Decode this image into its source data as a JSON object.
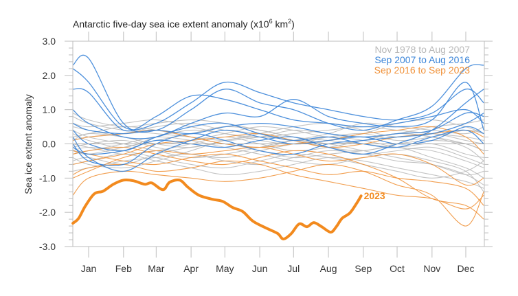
{
  "chart_data": {
    "type": "line",
    "title": "Antarctic five-day sea ice extent anomaly (x10",
    "title_sup1": "6",
    "title_mid": " km",
    "title_sup2": "2",
    "title_end": ")",
    "xlabel": "",
    "ylabel": "Sea ice extent anomaly",
    "x_unit": "day of year",
    "xlim": [
      1,
      366
    ],
    "ylim": [
      -3.0,
      3.0
    ],
    "yticks": [
      {
        "value": 3.0,
        "label": "3.0"
      },
      {
        "value": 2.0,
        "label": "2.0"
      },
      {
        "value": 1.0,
        "label": "1.0"
      },
      {
        "value": 0.0,
        "label": "0.0"
      },
      {
        "value": -1.0,
        "label": "-1.0"
      },
      {
        "value": -2.0,
        "label": "-2.0"
      },
      {
        "value": -3.0,
        "label": "-3.0"
      }
    ],
    "xticks": [
      {
        "day": 15,
        "label": "Jan"
      },
      {
        "day": 46,
        "label": "Feb"
      },
      {
        "day": 75,
        "label": "Mar"
      },
      {
        "day": 106,
        "label": "Apr"
      },
      {
        "day": 136,
        "label": "May"
      },
      {
        "day": 167,
        "label": "Jun"
      },
      {
        "day": 197,
        "label": "Jul"
      },
      {
        "day": 228,
        "label": "Aug"
      },
      {
        "day": 259,
        "label": "Sep"
      },
      {
        "day": 289,
        "label": "Oct"
      },
      {
        "day": 320,
        "label": "Nov"
      },
      {
        "day": 350,
        "label": "Dec"
      }
    ],
    "grid": false,
    "zero_line": true,
    "legend_position": "top-right",
    "legend": [
      {
        "label": "Nov 1978 to Aug 2007",
        "color": "#b9b9b9"
      },
      {
        "label": "Sep 2007 to Aug 2016",
        "color": "#3a84d8"
      },
      {
        "label": "Sep 2016 to Sep 2023",
        "color": "#f0923a"
      }
    ],
    "highlight": {
      "name": "2023",
      "label": "2023",
      "color": "#f28a1e",
      "x": [
        1,
        6,
        12,
        20,
        28,
        37,
        46,
        55,
        65,
        71,
        81,
        87,
        96,
        103,
        113,
        125,
        134,
        143,
        152,
        161,
        174,
        183,
        188,
        195,
        202,
        209,
        215,
        222,
        230,
        235,
        240,
        247,
        253,
        257
      ],
      "y": [
        -2.32,
        -2.18,
        -1.82,
        -1.46,
        -1.38,
        -1.18,
        -1.06,
        -1.08,
        -1.18,
        -1.14,
        -1.34,
        -1.12,
        -1.06,
        -1.26,
        -1.5,
        -1.62,
        -1.68,
        -1.86,
        -1.98,
        -2.26,
        -2.48,
        -2.62,
        -2.78,
        -2.62,
        -2.34,
        -2.42,
        -2.3,
        -2.42,
        -2.58,
        -2.42,
        -2.18,
        -2.02,
        -1.74,
        -1.52
      ]
    },
    "sample_x": [
      1,
      15,
      46,
      75,
      106,
      136,
      167,
      197,
      228,
      259,
      289,
      320,
      350,
      366
    ],
    "series": [
      {
        "group": "1978-2007",
        "values": [
          0.3,
          0.1,
          -0.1,
          0.2,
          0.4,
          0.3,
          0.1,
          0.0,
          0.2,
          0.3,
          0.1,
          0.2,
          0.4,
          0.3
        ]
      },
      {
        "group": "1978-2007",
        "values": [
          -0.2,
          -0.3,
          -0.1,
          0.1,
          0.3,
          0.5,
          0.4,
          0.2,
          0.1,
          0.0,
          -0.1,
          0.0,
          -0.3,
          -0.4
        ]
      },
      {
        "group": "1978-2007",
        "values": [
          0.8,
          0.6,
          0.4,
          0.3,
          0.2,
          0.1,
          0.2,
          0.4,
          0.3,
          0.2,
          0.3,
          0.5,
          0.6,
          0.7
        ]
      },
      {
        "group": "1978-2007",
        "values": [
          -0.5,
          -0.4,
          -0.6,
          -0.3,
          -0.1,
          0.0,
          -0.2,
          -0.4,
          -0.3,
          -0.2,
          -0.1,
          -0.4,
          -0.7,
          -1.0
        ]
      },
      {
        "group": "1978-2007",
        "values": [
          0.1,
          0.2,
          0.3,
          0.5,
          0.6,
          0.4,
          0.3,
          0.1,
          -0.1,
          -0.2,
          0.0,
          0.1,
          0.0,
          -0.2
        ]
      },
      {
        "group": "1978-2007",
        "values": [
          -0.8,
          -0.7,
          -0.5,
          -0.4,
          -0.3,
          -0.5,
          -0.6,
          -0.4,
          -0.2,
          -0.3,
          -0.5,
          -0.6,
          -0.9,
          -1.2
        ]
      },
      {
        "group": "1978-2007",
        "values": [
          0.5,
          0.4,
          0.2,
          0.0,
          -0.1,
          0.1,
          0.3,
          0.5,
          0.6,
          0.4,
          0.2,
          0.3,
          0.1,
          0.0
        ]
      },
      {
        "group": "1978-2007",
        "values": [
          0.0,
          -0.1,
          -0.3,
          -0.2,
          0.0,
          0.2,
          0.0,
          -0.2,
          -0.1,
          0.1,
          0.3,
          0.2,
          -0.1,
          -0.5
        ]
      },
      {
        "group": "1978-2007",
        "values": [
          -0.3,
          -0.2,
          0.0,
          0.2,
          0.1,
          -0.1,
          -0.3,
          -0.5,
          -0.6,
          -0.4,
          -0.3,
          -0.5,
          -0.8,
          -1.4
        ]
      },
      {
        "group": "1978-2007",
        "values": [
          0.6,
          0.5,
          0.6,
          0.7,
          0.5,
          0.3,
          0.2,
          0.3,
          0.4,
          0.5,
          0.4,
          0.3,
          0.2,
          0.1
        ]
      },
      {
        "group": "1978-2007",
        "values": [
          -0.1,
          0.0,
          0.1,
          -0.1,
          -0.3,
          -0.4,
          -0.2,
          0.0,
          0.2,
          0.1,
          -0.1,
          -0.2,
          -0.5,
          -0.7
        ]
      },
      {
        "group": "1978-2007",
        "values": [
          0.2,
          0.3,
          0.5,
          0.4,
          0.2,
          0.0,
          -0.1,
          0.1,
          0.3,
          0.6,
          0.5,
          0.4,
          0.3,
          0.5
        ]
      },
      {
        "group": "1978-2007",
        "values": [
          -0.6,
          -0.5,
          -0.3,
          -0.5,
          -0.7,
          -0.9,
          -0.8,
          -0.6,
          -0.4,
          -0.5,
          -0.7,
          -0.9,
          -1.1,
          -1.3
        ]
      },
      {
        "group": "1978-2007",
        "values": [
          0.9,
          0.7,
          0.5,
          0.6,
          0.7,
          0.6,
          0.4,
          0.2,
          0.0,
          0.1,
          0.3,
          0.2,
          0.0,
          -0.2
        ]
      },
      {
        "group": "1978-2007",
        "values": [
          -0.4,
          -0.6,
          -0.7,
          -0.5,
          -0.2,
          0.1,
          0.2,
          0.1,
          -0.1,
          -0.3,
          -0.2,
          -0.1,
          -0.4,
          -0.6
        ]
      },
      {
        "group": "1978-2007",
        "values": [
          0.4,
          0.2,
          0.0,
          -0.2,
          -0.4,
          -0.3,
          -0.1,
          0.1,
          0.0,
          -0.2,
          -0.4,
          -0.6,
          -0.9,
          -0.8
        ]
      },
      {
        "group": "1978-2007",
        "values": [
          0.1,
          0.3,
          0.2,
          0.0,
          0.1,
          0.3,
          0.5,
          0.4,
          0.2,
          0.3,
          0.6,
          0.7,
          0.5,
          0.3
        ]
      },
      {
        "group": "1978-2007",
        "values": [
          -0.2,
          -0.1,
          -0.2,
          -0.4,
          -0.6,
          -0.7,
          -0.5,
          -0.3,
          -0.4,
          -0.6,
          -0.8,
          -1.0,
          -0.8,
          -0.5
        ]
      },
      {
        "group": "2007-2016",
        "values": [
          2.3,
          2.5,
          0.6,
          0.4,
          1.0,
          1.6,
          1.2,
          1.0,
          0.6,
          0.4,
          0.7,
          1.1,
          2.2,
          2.3
        ]
      },
      {
        "group": "2007-2016",
        "values": [
          2.2,
          1.8,
          0.5,
          0.6,
          1.2,
          1.8,
          1.5,
          1.2,
          1.0,
          0.8,
          0.7,
          0.9,
          1.6,
          1.2
        ]
      },
      {
        "group": "2007-2016",
        "values": [
          1.6,
          1.5,
          0.4,
          0.8,
          1.4,
          1.3,
          1.0,
          0.7,
          0.6,
          0.5,
          0.6,
          0.8,
          1.0,
          0.6
        ]
      },
      {
        "group": "2007-2016",
        "values": [
          1.0,
          0.6,
          0.2,
          0.2,
          0.6,
          0.9,
          0.8,
          1.3,
          0.8,
          0.6,
          0.5,
          0.7,
          1.8,
          0.4
        ]
      },
      {
        "group": "2007-2016",
        "values": [
          0.6,
          0.4,
          0.3,
          0.4,
          0.3,
          0.5,
          0.6,
          0.5,
          0.3,
          0.2,
          0.3,
          0.4,
          0.9,
          0.8
        ]
      },
      {
        "group": "2007-2016",
        "values": [
          0.2,
          -0.4,
          -0.8,
          -0.3,
          0.1,
          0.4,
          0.2,
          0.0,
          0.1,
          0.2,
          0.0,
          0.1,
          0.5,
          0.3
        ]
      },
      {
        "group": "2007-2016",
        "values": [
          0.0,
          -0.5,
          -0.6,
          0.0,
          0.3,
          0.1,
          -0.2,
          -0.3,
          0.0,
          0.1,
          0.2,
          0.3,
          0.6,
          0.9
        ]
      },
      {
        "group": "2007-2016",
        "values": [
          0.4,
          0.0,
          -0.2,
          0.2,
          0.5,
          0.6,
          0.3,
          0.1,
          0.2,
          0.0,
          -0.1,
          0.2,
          0.4,
          0.0
        ]
      },
      {
        "group": "2007-2016",
        "values": [
          -0.1,
          -0.3,
          -0.2,
          0.1,
          0.0,
          -0.1,
          0.1,
          0.2,
          -0.1,
          -0.3,
          0.0,
          0.4,
          1.2,
          1.6
        ]
      },
      {
        "group": "2016-2023",
        "values": [
          -0.3,
          -0.2,
          -0.1,
          -0.3,
          -0.5,
          -0.6,
          -0.4,
          -0.2,
          -0.3,
          -0.6,
          -1.0,
          -1.6,
          -1.8,
          -2.2
        ]
      },
      {
        "group": "2016-2023",
        "values": [
          -1.5,
          -1.0,
          -0.8,
          -0.9,
          -1.0,
          -1.1,
          -1.0,
          -0.8,
          -0.6,
          -0.8,
          -1.2,
          -1.5,
          -2.4,
          -1.4
        ]
      },
      {
        "group": "2016-2023",
        "values": [
          -1.0,
          -0.8,
          -0.4,
          -0.2,
          -0.3,
          -0.2,
          -0.1,
          -0.3,
          -0.5,
          -0.4,
          -0.3,
          -0.6,
          -1.2,
          -1.0
        ]
      },
      {
        "group": "2016-2023",
        "values": [
          -0.6,
          -0.5,
          -0.3,
          0.0,
          0.1,
          0.2,
          0.3,
          0.1,
          -0.1,
          0.0,
          0.2,
          0.3,
          0.4,
          0.2
        ]
      },
      {
        "group": "2016-2023",
        "values": [
          -0.2,
          -0.3,
          -0.5,
          -0.6,
          -0.4,
          -0.3,
          -0.5,
          -0.7,
          -0.9,
          -0.8,
          -1.0,
          -1.1,
          -1.3,
          -1.8
        ]
      },
      {
        "group": "2016-2023",
        "values": [
          0.1,
          0.2,
          0.3,
          0.4,
          0.2,
          0.0,
          -0.1,
          0.0,
          0.1,
          0.3,
          0.4,
          0.5,
          0.2,
          -0.3
        ]
      },
      {
        "group": "2016-2023",
        "values": [
          -0.9,
          -0.7,
          -0.6,
          -0.8,
          -0.7,
          -0.5,
          -0.6,
          -0.9,
          -1.1,
          -1.3,
          -1.5,
          -1.6,
          -1.9,
          -1.5
        ]
      }
    ]
  }
}
